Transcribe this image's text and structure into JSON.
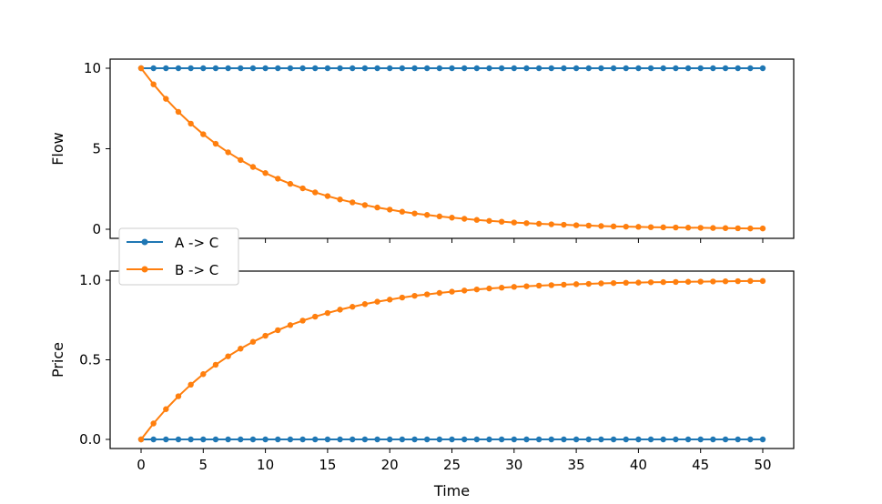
{
  "chart_data": [
    {
      "type": "line",
      "panel": "top",
      "ylabel": "Flow",
      "xlabel": "",
      "xlim": [
        0,
        50
      ],
      "ylim": [
        0,
        10
      ],
      "xticks": [
        "0",
        "5",
        "10",
        "15",
        "20",
        "25",
        "30",
        "35",
        "40",
        "45",
        "50"
      ],
      "yticks": [
        "0",
        "5",
        "10"
      ],
      "x": [
        0,
        1,
        2,
        3,
        4,
        5,
        6,
        7,
        8,
        9,
        10,
        11,
        12,
        13,
        14,
        15,
        16,
        17,
        18,
        19,
        20,
        21,
        22,
        23,
        24,
        25,
        26,
        27,
        28,
        29,
        30,
        31,
        32,
        33,
        34,
        35,
        36,
        37,
        38,
        39,
        40,
        41,
        42,
        43,
        44,
        45,
        46,
        47,
        48,
        49,
        50
      ],
      "series": [
        {
          "name": "A -> C",
          "color": "#1f77b4",
          "values": [
            10,
            10,
            10,
            10,
            10,
            10,
            10,
            10,
            10,
            10,
            10,
            10,
            10,
            10,
            10,
            10,
            10,
            10,
            10,
            10,
            10,
            10,
            10,
            10,
            10,
            10,
            10,
            10,
            10,
            10,
            10,
            10,
            10,
            10,
            10,
            10,
            10,
            10,
            10,
            10,
            10,
            10,
            10,
            10,
            10,
            10,
            10,
            10,
            10,
            10,
            10
          ]
        },
        {
          "name": "B -> C",
          "color": "#ff7f0e",
          "values": [
            10,
            9.0,
            8.1,
            7.29,
            6.56,
            5.9,
            5.31,
            4.78,
            4.3,
            3.87,
            3.49,
            3.14,
            2.82,
            2.54,
            2.29,
            2.06,
            1.85,
            1.67,
            1.5,
            1.35,
            1.22,
            1.09,
            0.98,
            0.89,
            0.8,
            0.72,
            0.65,
            0.58,
            0.52,
            0.47,
            0.42,
            0.38,
            0.34,
            0.31,
            0.28,
            0.25,
            0.23,
            0.2,
            0.18,
            0.16,
            0.15,
            0.13,
            0.12,
            0.11,
            0.1,
            0.09,
            0.08,
            0.07,
            0.06,
            0.05,
            0.05
          ]
        }
      ],
      "legend": "lower-left",
      "grid": false
    },
    {
      "type": "line",
      "panel": "bottom",
      "ylabel": "Price",
      "xlabel": "Time",
      "xlim": [
        0,
        50
      ],
      "ylim": [
        0,
        1
      ],
      "xticks": [
        "0",
        "5",
        "10",
        "15",
        "20",
        "25",
        "30",
        "35",
        "40",
        "45",
        "50"
      ],
      "yticks": [
        "0.0",
        "0.5",
        "1.0"
      ],
      "x": [
        0,
        1,
        2,
        3,
        4,
        5,
        6,
        7,
        8,
        9,
        10,
        11,
        12,
        13,
        14,
        15,
        16,
        17,
        18,
        19,
        20,
        21,
        22,
        23,
        24,
        25,
        26,
        27,
        28,
        29,
        30,
        31,
        32,
        33,
        34,
        35,
        36,
        37,
        38,
        39,
        40,
        41,
        42,
        43,
        44,
        45,
        46,
        47,
        48,
        49,
        50
      ],
      "series": [
        {
          "name": "A -> C",
          "color": "#1f77b4",
          "values": [
            0,
            0,
            0,
            0,
            0,
            0,
            0,
            0,
            0,
            0,
            0,
            0,
            0,
            0,
            0,
            0,
            0,
            0,
            0,
            0,
            0,
            0,
            0,
            0,
            0,
            0,
            0,
            0,
            0,
            0,
            0,
            0,
            0,
            0,
            0,
            0,
            0,
            0,
            0,
            0,
            0,
            0,
            0,
            0,
            0,
            0,
            0,
            0,
            0,
            0,
            0
          ]
        },
        {
          "name": "B -> C",
          "color": "#ff7f0e",
          "values": [
            0,
            0.1,
            0.19,
            0.271,
            0.344,
            0.41,
            0.469,
            0.522,
            0.57,
            0.613,
            0.651,
            0.686,
            0.718,
            0.746,
            0.771,
            0.794,
            0.815,
            0.833,
            0.85,
            0.865,
            0.878,
            0.891,
            0.902,
            0.911,
            0.92,
            0.928,
            0.935,
            0.942,
            0.948,
            0.953,
            0.958,
            0.962,
            0.966,
            0.969,
            0.972,
            0.975,
            0.977,
            0.98,
            0.982,
            0.984,
            0.985,
            0.987,
            0.988,
            0.989,
            0.99,
            0.991,
            0.992,
            0.993,
            0.994,
            0.995,
            0.995
          ]
        }
      ],
      "grid": false
    }
  ],
  "legend": {
    "entries": [
      {
        "label": "A -> C",
        "color": "#1f77b4"
      },
      {
        "label": "B -> C",
        "color": "#ff7f0e"
      }
    ]
  }
}
